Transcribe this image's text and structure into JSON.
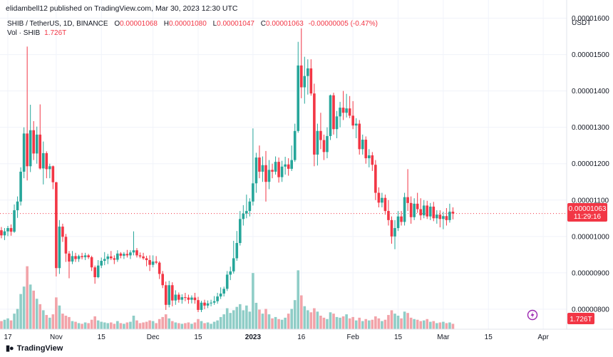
{
  "publisher_line": "elidambell12 published on TradingView.com, Mar 30, 2023 12:30 UTC",
  "legend": {
    "symbol": "SHIB / TetherUS, 1D, BINANCE",
    "open_label": "O",
    "open": "0.00001068",
    "high_label": "H",
    "high": "0.00001080",
    "low_label": "L",
    "low": "0.00001047",
    "close_label": "C",
    "close": "0.00001063",
    "change": "-0.00000005 (-0.47%)",
    "vol_label": "Vol · SHIB",
    "vol_value": "1.726T"
  },
  "axis_currency": "USDT",
  "price_tag": {
    "price": "0.00001063",
    "countdown": "11:29:16"
  },
  "volume_tag": "1.726T",
  "footer_brand": "TradingView",
  "colors": {
    "up": "#26a69a",
    "down": "#f23645",
    "vol_up": "#8fcdc7",
    "vol_down": "#f2a3a9",
    "grid": "#f0f3fa",
    "text": "#131722"
  },
  "chart_data": {
    "type": "candlestick",
    "title": "SHIB / TetherUS, 1D, BINANCE",
    "y_ticks": [
      "0.00001600",
      "0.00001500",
      "0.00001400",
      "0.00001300",
      "0.00001200",
      "0.00001100",
      "0.00001000",
      "0.00000900",
      "0.00000800"
    ],
    "y_range": [
      7.45e-06,
      1.65e-05
    ],
    "x_ticks": [
      "17",
      "Nov",
      "15",
      "Dec",
      "15",
      "2023",
      "16",
      "Feb",
      "15",
      "Mar",
      "15",
      "Apr"
    ],
    "x_range": [
      "2022-10-17",
      "2023-04-01"
    ],
    "current_price": 1.063e-05,
    "candles": [
      {
        "o": 1043,
        "h": 1053,
        "l": 1024,
        "c": 1037,
        "v": 1.1
      },
      {
        "o": 1037,
        "h": 1041,
        "l": 996,
        "c": 1002,
        "v": 1.0
      },
      {
        "o": 1002,
        "h": 1023,
        "l": 982,
        "c": 1017,
        "v": 1.5
      },
      {
        "o": 1017,
        "h": 1026,
        "l": 995,
        "c": 1003,
        "v": 1.2
      },
      {
        "o": 1003,
        "h": 1023,
        "l": 990,
        "c": 1014,
        "v": 1.4
      },
      {
        "o": 1014,
        "h": 1029,
        "l": 1001,
        "c": 1023,
        "v": 1.6
      },
      {
        "o": 1023,
        "h": 1033,
        "l": 1002,
        "c": 1013,
        "v": 1.3
      },
      {
        "o": 1013,
        "h": 1088,
        "l": 1010,
        "c": 1072,
        "v": 2.3
      },
      {
        "o": 1072,
        "h": 1110,
        "l": 1051,
        "c": 1096,
        "v": 3.0
      },
      {
        "o": 1096,
        "h": 1190,
        "l": 1085,
        "c": 1178,
        "v": 5.2
      },
      {
        "o": 1178,
        "h": 1300,
        "l": 1160,
        "c": 1283,
        "v": 6.3
      },
      {
        "o": 1283,
        "h": 1522,
        "l": 1154,
        "c": 1193,
        "v": 9.3
      },
      {
        "o": 1193,
        "h": 1362,
        "l": 1177,
        "c": 1292,
        "v": 6.6
      },
      {
        "o": 1292,
        "h": 1317,
        "l": 1210,
        "c": 1228,
        "v": 5.7
      },
      {
        "o": 1228,
        "h": 1302,
        "l": 1200,
        "c": 1280,
        "v": 4.5
      },
      {
        "o": 1280,
        "h": 1363,
        "l": 1184,
        "c": 1187,
        "v": 3.7
      },
      {
        "o": 1187,
        "h": 1261,
        "l": 1143,
        "c": 1229,
        "v": 2.8
      },
      {
        "o": 1229,
        "h": 1234,
        "l": 1160,
        "c": 1185,
        "v": 2.1
      },
      {
        "o": 1185,
        "h": 1200,
        "l": 1160,
        "c": 1193,
        "v": 1.7
      },
      {
        "o": 1193,
        "h": 1195,
        "l": 1130,
        "c": 1149,
        "v": 2.2
      },
      {
        "o": 1149,
        "h": 1150,
        "l": 890,
        "c": 913,
        "v": 4.7
      },
      {
        "o": 913,
        "h": 1045,
        "l": 897,
        "c": 1027,
        "v": 3.5
      },
      {
        "o": 1027,
        "h": 1035,
        "l": 985,
        "c": 999,
        "v": 2.3
      },
      {
        "o": 999,
        "h": 1007,
        "l": 930,
        "c": 953,
        "v": 2.0
      },
      {
        "o": 953,
        "h": 960,
        "l": 885,
        "c": 931,
        "v": 1.8
      },
      {
        "o": 931,
        "h": 960,
        "l": 924,
        "c": 946,
        "v": 1.2
      },
      {
        "o": 946,
        "h": 955,
        "l": 930,
        "c": 938,
        "v": 1.1
      },
      {
        "o": 938,
        "h": 950,
        "l": 930,
        "c": 946,
        "v": 0.9
      },
      {
        "o": 946,
        "h": 955,
        "l": 937,
        "c": 943,
        "v": 0.8
      },
      {
        "o": 943,
        "h": 955,
        "l": 935,
        "c": 948,
        "v": 1.0
      },
      {
        "o": 948,
        "h": 952,
        "l": 938,
        "c": 943,
        "v": 0.9
      },
      {
        "o": 943,
        "h": 947,
        "l": 905,
        "c": 915,
        "v": 1.4
      },
      {
        "o": 915,
        "h": 920,
        "l": 870,
        "c": 888,
        "v": 1.9
      },
      {
        "o": 888,
        "h": 935,
        "l": 885,
        "c": 920,
        "v": 1.3
      },
      {
        "o": 920,
        "h": 942,
        "l": 913,
        "c": 933,
        "v": 1.1
      },
      {
        "o": 933,
        "h": 957,
        "l": 921,
        "c": 938,
        "v": 1.0
      },
      {
        "o": 938,
        "h": 952,
        "l": 924,
        "c": 945,
        "v": 0.9
      },
      {
        "o": 945,
        "h": 960,
        "l": 935,
        "c": 940,
        "v": 1.0
      },
      {
        "o": 940,
        "h": 948,
        "l": 924,
        "c": 936,
        "v": 0.8
      },
      {
        "o": 936,
        "h": 962,
        "l": 930,
        "c": 953,
        "v": 1.2
      },
      {
        "o": 953,
        "h": 957,
        "l": 940,
        "c": 947,
        "v": 0.9
      },
      {
        "o": 947,
        "h": 957,
        "l": 938,
        "c": 952,
        "v": 0.8
      },
      {
        "o": 952,
        "h": 963,
        "l": 942,
        "c": 948,
        "v": 1.0
      },
      {
        "o": 948,
        "h": 962,
        "l": 938,
        "c": 956,
        "v": 1.1
      },
      {
        "o": 956,
        "h": 1014,
        "l": 948,
        "c": 962,
        "v": 2.0
      },
      {
        "o": 962,
        "h": 968,
        "l": 942,
        "c": 948,
        "v": 1.3
      },
      {
        "o": 948,
        "h": 956,
        "l": 940,
        "c": 945,
        "v": 0.9
      },
      {
        "o": 945,
        "h": 955,
        "l": 936,
        "c": 940,
        "v": 1.0
      },
      {
        "o": 940,
        "h": 947,
        "l": 918,
        "c": 935,
        "v": 1.1
      },
      {
        "o": 935,
        "h": 948,
        "l": 905,
        "c": 922,
        "v": 1.3
      },
      {
        "o": 922,
        "h": 948,
        "l": 915,
        "c": 931,
        "v": 1.2
      },
      {
        "o": 931,
        "h": 946,
        "l": 924,
        "c": 928,
        "v": 0.9
      },
      {
        "o": 928,
        "h": 932,
        "l": 883,
        "c": 897,
        "v": 1.5
      },
      {
        "o": 897,
        "h": 905,
        "l": 858,
        "c": 866,
        "v": 1.8
      },
      {
        "o": 866,
        "h": 876,
        "l": 798,
        "c": 812,
        "v": 2.2
      },
      {
        "o": 812,
        "h": 878,
        "l": 805,
        "c": 866,
        "v": 1.6
      },
      {
        "o": 866,
        "h": 874,
        "l": 808,
        "c": 824,
        "v": 1.2
      },
      {
        "o": 824,
        "h": 852,
        "l": 812,
        "c": 840,
        "v": 1.0
      },
      {
        "o": 840,
        "h": 846,
        "l": 818,
        "c": 826,
        "v": 0.9
      },
      {
        "o": 826,
        "h": 841,
        "l": 815,
        "c": 833,
        "v": 0.8
      },
      {
        "o": 833,
        "h": 845,
        "l": 822,
        "c": 832,
        "v": 0.9
      },
      {
        "o": 832,
        "h": 840,
        "l": 815,
        "c": 826,
        "v": 1.0
      },
      {
        "o": 826,
        "h": 838,
        "l": 816,
        "c": 832,
        "v": 0.8
      },
      {
        "o": 832,
        "h": 845,
        "l": 815,
        "c": 825,
        "v": 1.0
      },
      {
        "o": 825,
        "h": 834,
        "l": 792,
        "c": 798,
        "v": 1.5
      },
      {
        "o": 798,
        "h": 823,
        "l": 792,
        "c": 818,
        "v": 1.2
      },
      {
        "o": 818,
        "h": 826,
        "l": 800,
        "c": 810,
        "v": 0.9
      },
      {
        "o": 810,
        "h": 824,
        "l": 803,
        "c": 816,
        "v": 1.0
      },
      {
        "o": 816,
        "h": 826,
        "l": 808,
        "c": 818,
        "v": 0.8
      },
      {
        "o": 818,
        "h": 836,
        "l": 812,
        "c": 822,
        "v": 1.1
      },
      {
        "o": 822,
        "h": 845,
        "l": 815,
        "c": 835,
        "v": 1.3
      },
      {
        "o": 835,
        "h": 860,
        "l": 828,
        "c": 843,
        "v": 1.8
      },
      {
        "o": 843,
        "h": 862,
        "l": 835,
        "c": 856,
        "v": 2.2
      },
      {
        "o": 856,
        "h": 905,
        "l": 850,
        "c": 895,
        "v": 3.1
      },
      {
        "o": 895,
        "h": 917,
        "l": 880,
        "c": 904,
        "v": 2.4
      },
      {
        "o": 904,
        "h": 988,
        "l": 898,
        "c": 940,
        "v": 2.8
      },
      {
        "o": 940,
        "h": 1015,
        "l": 933,
        "c": 982,
        "v": 3.3
      },
      {
        "o": 982,
        "h": 1070,
        "l": 975,
        "c": 1048,
        "v": 3.7
      },
      {
        "o": 1048,
        "h": 1086,
        "l": 1030,
        "c": 1063,
        "v": 2.8
      },
      {
        "o": 1063,
        "h": 1115,
        "l": 1050,
        "c": 1070,
        "v": 3.5
      },
      {
        "o": 1070,
        "h": 1105,
        "l": 1055,
        "c": 1096,
        "v": 2.6
      },
      {
        "o": 1096,
        "h": 1297,
        "l": 1085,
        "c": 1146,
        "v": 8.3
      },
      {
        "o": 1146,
        "h": 1230,
        "l": 1120,
        "c": 1217,
        "v": 3.9
      },
      {
        "o": 1217,
        "h": 1250,
        "l": 1160,
        "c": 1178,
        "v": 2.9
      },
      {
        "o": 1178,
        "h": 1220,
        "l": 1150,
        "c": 1196,
        "v": 2.3
      },
      {
        "o": 1196,
        "h": 1235,
        "l": 1096,
        "c": 1150,
        "v": 3.0
      },
      {
        "o": 1150,
        "h": 1210,
        "l": 1130,
        "c": 1183,
        "v": 2.2
      },
      {
        "o": 1183,
        "h": 1200,
        "l": 1160,
        "c": 1178,
        "v": 1.6
      },
      {
        "o": 1178,
        "h": 1220,
        "l": 1170,
        "c": 1205,
        "v": 1.8
      },
      {
        "o": 1205,
        "h": 1217,
        "l": 1148,
        "c": 1163,
        "v": 1.5
      },
      {
        "o": 1163,
        "h": 1208,
        "l": 1150,
        "c": 1192,
        "v": 1.4
      },
      {
        "o": 1192,
        "h": 1219,
        "l": 1170,
        "c": 1198,
        "v": 1.7
      },
      {
        "o": 1198,
        "h": 1215,
        "l": 1167,
        "c": 1186,
        "v": 2.3
      },
      {
        "o": 1186,
        "h": 1250,
        "l": 1180,
        "c": 1210,
        "v": 3.0
      },
      {
        "o": 1210,
        "h": 1310,
        "l": 1205,
        "c": 1290,
        "v": 4.3
      },
      {
        "o": 1290,
        "h": 1535,
        "l": 1285,
        "c": 1470,
        "v": 8.7
      },
      {
        "o": 1470,
        "h": 1572,
        "l": 1380,
        "c": 1410,
        "v": 5.0
      },
      {
        "o": 1410,
        "h": 1494,
        "l": 1365,
        "c": 1441,
        "v": 3.4
      },
      {
        "o": 1441,
        "h": 1487,
        "l": 1390,
        "c": 1462,
        "v": 2.8
      },
      {
        "o": 1462,
        "h": 1487,
        "l": 1387,
        "c": 1393,
        "v": 2.5
      },
      {
        "o": 1393,
        "h": 1420,
        "l": 1193,
        "c": 1225,
        "v": 3.1
      },
      {
        "o": 1225,
        "h": 1310,
        "l": 1195,
        "c": 1290,
        "v": 2.6
      },
      {
        "o": 1290,
        "h": 1340,
        "l": 1240,
        "c": 1265,
        "v": 2.0
      },
      {
        "o": 1265,
        "h": 1280,
        "l": 1210,
        "c": 1232,
        "v": 1.7
      },
      {
        "o": 1232,
        "h": 1300,
        "l": 1215,
        "c": 1276,
        "v": 1.5
      },
      {
        "o": 1276,
        "h": 1390,
        "l": 1265,
        "c": 1388,
        "v": 2.5
      },
      {
        "o": 1388,
        "h": 1395,
        "l": 1280,
        "c": 1295,
        "v": 2.3
      },
      {
        "o": 1295,
        "h": 1345,
        "l": 1270,
        "c": 1330,
        "v": 1.8
      },
      {
        "o": 1330,
        "h": 1370,
        "l": 1300,
        "c": 1354,
        "v": 1.7
      },
      {
        "o": 1354,
        "h": 1400,
        "l": 1320,
        "c": 1340,
        "v": 1.9
      },
      {
        "o": 1340,
        "h": 1392,
        "l": 1327,
        "c": 1352,
        "v": 2.2
      },
      {
        "o": 1352,
        "h": 1386,
        "l": 1325,
        "c": 1332,
        "v": 1.6
      },
      {
        "o": 1332,
        "h": 1372,
        "l": 1295,
        "c": 1305,
        "v": 1.8
      },
      {
        "o": 1305,
        "h": 1325,
        "l": 1270,
        "c": 1310,
        "v": 1.3
      },
      {
        "o": 1310,
        "h": 1320,
        "l": 1225,
        "c": 1240,
        "v": 1.7
      },
      {
        "o": 1240,
        "h": 1280,
        "l": 1225,
        "c": 1266,
        "v": 1.2
      },
      {
        "o": 1266,
        "h": 1275,
        "l": 1200,
        "c": 1215,
        "v": 1.5
      },
      {
        "o": 1215,
        "h": 1240,
        "l": 1190,
        "c": 1223,
        "v": 1.3
      },
      {
        "o": 1223,
        "h": 1232,
        "l": 1180,
        "c": 1197,
        "v": 1.4
      },
      {
        "o": 1197,
        "h": 1210,
        "l": 1100,
        "c": 1120,
        "v": 1.9
      },
      {
        "o": 1120,
        "h": 1135,
        "l": 1080,
        "c": 1093,
        "v": 1.6
      },
      {
        "o": 1093,
        "h": 1120,
        "l": 1080,
        "c": 1106,
        "v": 1.2
      },
      {
        "o": 1106,
        "h": 1115,
        "l": 1060,
        "c": 1070,
        "v": 1.4
      },
      {
        "o": 1070,
        "h": 1100,
        "l": 1030,
        "c": 1045,
        "v": 2.1
      },
      {
        "o": 1045,
        "h": 1055,
        "l": 980,
        "c": 1000,
        "v": 2.8
      },
      {
        "o": 1000,
        "h": 1045,
        "l": 965,
        "c": 1023,
        "v": 2.3
      },
      {
        "o": 1023,
        "h": 1070,
        "l": 1015,
        "c": 1055,
        "v": 2.0
      },
      {
        "o": 1055,
        "h": 1070,
        "l": 1030,
        "c": 1040,
        "v": 1.6
      },
      {
        "o": 1040,
        "h": 1120,
        "l": 1030,
        "c": 1108,
        "v": 2.6
      },
      {
        "o": 1108,
        "h": 1185,
        "l": 1070,
        "c": 1092,
        "v": 2.4
      },
      {
        "o": 1092,
        "h": 1110,
        "l": 1035,
        "c": 1053,
        "v": 1.7
      },
      {
        "o": 1053,
        "h": 1105,
        "l": 1045,
        "c": 1090,
        "v": 1.5
      },
      {
        "o": 1090,
        "h": 1120,
        "l": 1065,
        "c": 1075,
        "v": 1.4
      },
      {
        "o": 1075,
        "h": 1105,
        "l": 1045,
        "c": 1058,
        "v": 1.2
      },
      {
        "o": 1058,
        "h": 1100,
        "l": 1050,
        "c": 1085,
        "v": 1.3
      },
      {
        "o": 1085,
        "h": 1098,
        "l": 1048,
        "c": 1055,
        "v": 1.5
      },
      {
        "o": 1055,
        "h": 1092,
        "l": 1045,
        "c": 1082,
        "v": 1.1
      },
      {
        "o": 1082,
        "h": 1095,
        "l": 1042,
        "c": 1050,
        "v": 1.2
      },
      {
        "o": 1050,
        "h": 1072,
        "l": 1035,
        "c": 1060,
        "v": 0.9
      },
      {
        "o": 1060,
        "h": 1072,
        "l": 1025,
        "c": 1048,
        "v": 1.0
      },
      {
        "o": 1048,
        "h": 1068,
        "l": 1020,
        "c": 1056,
        "v": 1.1
      },
      {
        "o": 1056,
        "h": 1078,
        "l": 1030,
        "c": 1045,
        "v": 0.9
      },
      {
        "o": 1045,
        "h": 1090,
        "l": 1038,
        "c": 1068,
        "v": 1.0
      },
      {
        "o": 1068,
        "h": 1080,
        "l": 1047,
        "c": 1063,
        "v": 0.8
      }
    ]
  }
}
